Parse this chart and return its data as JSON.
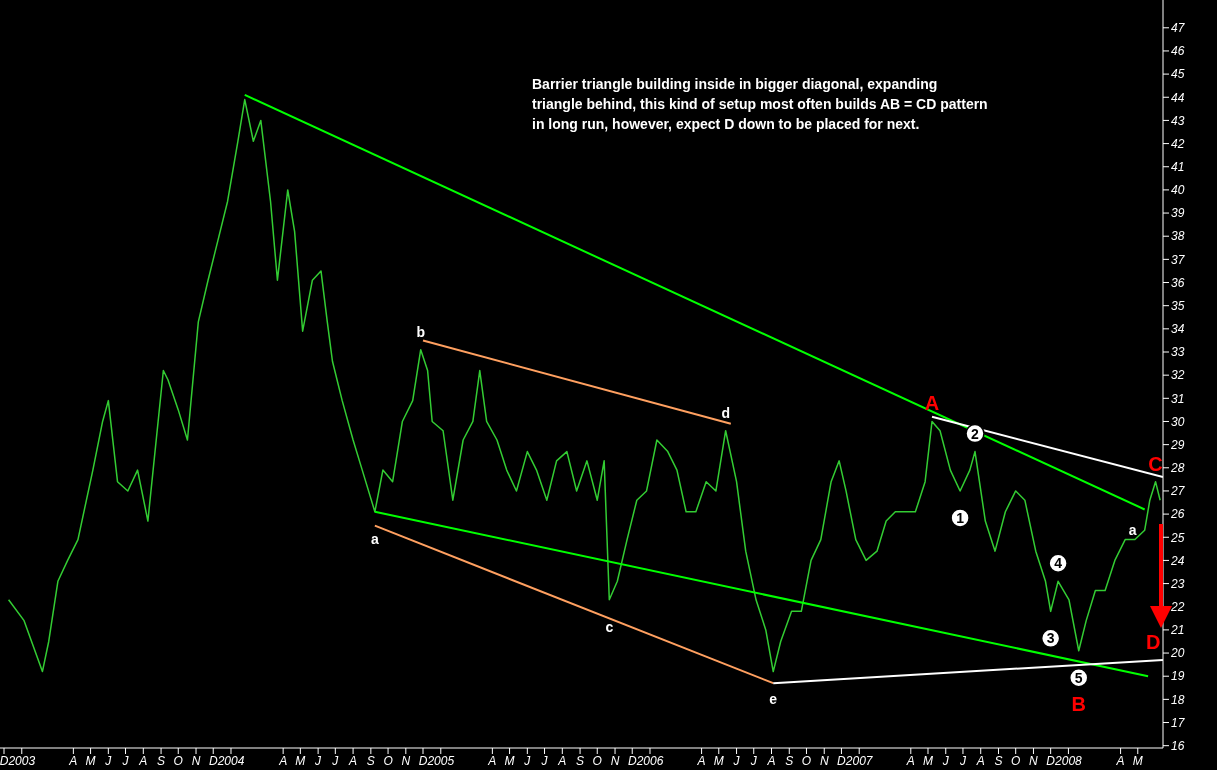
{
  "chart_data": {
    "type": "line",
    "annotations": [
      "Barrier triangle building inside in bigger diagonal, expanding\ntriangle behind, this kind of setup most often builds AB = CD pattern\nin long run, however, expect D down to be placed for next.",
      "D",
      {
        "text": "a",
        "x": "2004-09-08",
        "y": 26.1
      },
      {
        "text": "b",
        "x": "2004-11-27",
        "y": 33.1
      },
      {
        "text": "c",
        "x": "2005-10-22",
        "y": 22.3
      },
      {
        "text": "d",
        "x": "2006-05-13",
        "y": 29.6
      },
      {
        "text": "e",
        "x": "2006-08-04",
        "y": 19.2
      },
      {
        "text": "A",
        "x": "2007-05-08",
        "y": 30.0
      },
      {
        "text": "1",
        "x": "2007-06-26",
        "y": 27.0
      },
      {
        "text": "2",
        "x": "2007-07-22",
        "y": 28.7
      },
      {
        "text": "3",
        "x": "2007-12-01",
        "y": 21.8
      },
      {
        "text": "4",
        "x": "2007-12-14",
        "y": 23.1
      },
      {
        "text": "5",
        "x": "2008-01-19",
        "y": 20.1
      },
      {
        "text": "B",
        "x": "2008-01-19",
        "y": 20.1
      },
      {
        "text": "a",
        "x": "2008-05-13",
        "y": 25.3
      },
      {
        "text": "C",
        "x": "2008-06-01",
        "y": 27.4
      }
    ],
    "xlim": [
      "2002-11-24",
      "2008-06-14"
    ],
    "xticks": [
      {
        "value": "2002-12-01",
        "label": "D"
      },
      {
        "value": "2003-01-01",
        "label": "2003"
      },
      {
        "value": "2003-04-01",
        "label": "A"
      },
      {
        "value": "2003-05-01",
        "label": "M"
      },
      {
        "value": "2003-06-01",
        "label": "J"
      },
      {
        "value": "2003-07-01",
        "label": "J"
      },
      {
        "value": "2003-08-01",
        "label": "A"
      },
      {
        "value": "2003-09-01",
        "label": "S"
      },
      {
        "value": "2003-10-01",
        "label": "O"
      },
      {
        "value": "2003-11-01",
        "label": "N"
      },
      {
        "value": "2003-12-01",
        "label": "D"
      },
      {
        "value": "2004-01-01",
        "label": "2004"
      },
      {
        "value": "2004-04-01",
        "label": "A"
      },
      {
        "value": "2004-05-01",
        "label": "M"
      },
      {
        "value": "2004-06-01",
        "label": "J"
      },
      {
        "value": "2004-07-01",
        "label": "J"
      },
      {
        "value": "2004-08-01",
        "label": "A"
      },
      {
        "value": "2004-09-01",
        "label": "S"
      },
      {
        "value": "2004-10-01",
        "label": "O"
      },
      {
        "value": "2004-11-01",
        "label": "N"
      },
      {
        "value": "2004-12-01",
        "label": "D"
      },
      {
        "value": "2005-01-01",
        "label": "2005"
      },
      {
        "value": "2005-04-01",
        "label": "A"
      },
      {
        "value": "2005-05-01",
        "label": "M"
      },
      {
        "value": "2005-06-01",
        "label": "J"
      },
      {
        "value": "2005-07-01",
        "label": "J"
      },
      {
        "value": "2005-08-01",
        "label": "A"
      },
      {
        "value": "2005-09-01",
        "label": "S"
      },
      {
        "value": "2005-10-01",
        "label": "O"
      },
      {
        "value": "2005-11-01",
        "label": "N"
      },
      {
        "value": "2005-12-01",
        "label": "D"
      },
      {
        "value": "2006-01-01",
        "label": "2006"
      },
      {
        "value": "2006-04-01",
        "label": "A"
      },
      {
        "value": "2006-05-01",
        "label": "M"
      },
      {
        "value": "2006-06-01",
        "label": "J"
      },
      {
        "value": "2006-07-01",
        "label": "J"
      },
      {
        "value": "2006-08-01",
        "label": "A"
      },
      {
        "value": "2006-09-01",
        "label": "S"
      },
      {
        "value": "2006-10-01",
        "label": "O"
      },
      {
        "value": "2006-11-01",
        "label": "N"
      },
      {
        "value": "2006-12-01",
        "label": "D"
      },
      {
        "value": "2007-01-01",
        "label": "2007"
      },
      {
        "value": "2007-04-01",
        "label": "A"
      },
      {
        "value": "2007-05-01",
        "label": "M"
      },
      {
        "value": "2007-06-01",
        "label": "J"
      },
      {
        "value": "2007-07-01",
        "label": "J"
      },
      {
        "value": "2007-08-01",
        "label": "A"
      },
      {
        "value": "2007-09-01",
        "label": "S"
      },
      {
        "value": "2007-10-01",
        "label": "O"
      },
      {
        "value": "2007-11-01",
        "label": "N"
      },
      {
        "value": "2007-12-01",
        "label": "D"
      },
      {
        "value": "2008-01-01",
        "label": "2008"
      },
      {
        "value": "2008-04-01",
        "label": "A"
      },
      {
        "value": "2008-05-01",
        "label": "M"
      }
    ],
    "ylim": [
      15.9,
      48.2
    ],
    "yticks": [
      16,
      17,
      18,
      19,
      20,
      21,
      22,
      23,
      24,
      25,
      26,
      27,
      28,
      29,
      30,
      31,
      32,
      33,
      34,
      35,
      36,
      37,
      38,
      39,
      40,
      41,
      42,
      43,
      44,
      45,
      46,
      47
    ],
    "grid": false,
    "legend": false,
    "series": [
      {
        "color": "#33cc33",
        "x": [
          "2002-12-09",
          "2003-01-05",
          "2003-02-06",
          "2003-02-17",
          "2003-03-05",
          "2003-03-22",
          "2003-04-09",
          "2003-05-05",
          "2003-05-22",
          "2003-06-01",
          "2003-06-17",
          "2003-07-05",
          "2003-07-22",
          "2003-08-09",
          "2003-09-05",
          "2003-09-13",
          "2003-10-01",
          "2003-10-17",
          "2003-11-05",
          "2003-11-22",
          "2003-12-09",
          "2003-12-26",
          "2004-01-13",
          "2004-01-25",
          "2004-02-09",
          "2004-02-22",
          "2004-03-10",
          "2004-03-22",
          "2004-04-09",
          "2004-04-21",
          "2004-05-05",
          "2004-05-22",
          "2004-06-06",
          "2004-06-17",
          "2004-06-26",
          "2004-07-13",
          "2004-08-01",
          "2004-08-17",
          "2004-09-08",
          "2004-09-22",
          "2004-10-09",
          "2004-10-26",
          "2004-11-13",
          "2004-11-27",
          "2004-12-09",
          "2004-12-17",
          "2005-01-05",
          "2005-01-22",
          "2005-02-09",
          "2005-02-26",
          "2005-03-10",
          "2005-03-22",
          "2005-04-09",
          "2005-04-26",
          "2005-05-13",
          "2005-06-01",
          "2005-06-17",
          "2005-07-05",
          "2005-07-22",
          "2005-08-09",
          "2005-08-26",
          "2005-09-13",
          "2005-10-01",
          "2005-10-13",
          "2005-10-22",
          "2005-11-05",
          "2005-11-22",
          "2005-12-09",
          "2005-12-26",
          "2006-01-13",
          "2006-02-01",
          "2006-02-17",
          "2006-03-05",
          "2006-03-22",
          "2006-04-09",
          "2006-04-26",
          "2006-05-13",
          "2006-06-01",
          "2006-06-17",
          "2006-07-05",
          "2006-07-22",
          "2006-08-04",
          "2006-08-17",
          "2006-09-05",
          "2006-09-22",
          "2006-10-09",
          "2006-10-26",
          "2006-11-13",
          "2006-11-27",
          "2006-12-09",
          "2006-12-26",
          "2007-01-13",
          "2007-02-01",
          "2007-02-17",
          "2007-03-05",
          "2007-03-22",
          "2007-04-09",
          "2007-04-26",
          "2007-05-08",
          "2007-05-22",
          "2007-06-09",
          "2007-06-26",
          "2007-07-13",
          "2007-07-22",
          "2007-08-09",
          "2007-08-26",
          "2007-09-13",
          "2007-10-01",
          "2007-10-17",
          "2007-11-05",
          "2007-11-22",
          "2007-12-01",
          "2007-12-14",
          "2008-01-02",
          "2008-01-19",
          "2008-02-01",
          "2008-02-17",
          "2008-03-05",
          "2008-03-22",
          "2008-04-09",
          "2008-04-26",
          "2008-05-13",
          "2008-05-22",
          "2008-06-01",
          "2008-06-09"
        ],
        "values": [
          22.3,
          21.4,
          19.2,
          20.5,
          23.1,
          24.0,
          24.9,
          27.9,
          30.0,
          30.9,
          27.4,
          27.0,
          27.9,
          25.7,
          32.2,
          31.8,
          30.5,
          29.2,
          34.3,
          36.1,
          37.8,
          39.5,
          42.1,
          43.9,
          42.1,
          43.0,
          39.5,
          36.1,
          40.0,
          38.2,
          33.9,
          36.1,
          36.5,
          34.3,
          32.6,
          30.9,
          29.2,
          27.9,
          26.1,
          27.9,
          27.4,
          30.0,
          30.9,
          33.1,
          32.2,
          30.0,
          29.6,
          26.6,
          29.2,
          30.0,
          32.2,
          30.0,
          29.2,
          27.9,
          27.0,
          28.7,
          27.9,
          26.6,
          28.3,
          28.7,
          27.0,
          28.3,
          26.6,
          28.3,
          22.3,
          23.1,
          24.9,
          26.6,
          27.0,
          29.2,
          28.7,
          27.9,
          26.1,
          26.1,
          27.4,
          27.0,
          29.6,
          27.4,
          24.4,
          22.3,
          21.0,
          19.2,
          20.5,
          21.8,
          21.8,
          24.0,
          24.9,
          27.4,
          28.3,
          27.0,
          24.9,
          24.0,
          24.4,
          25.7,
          26.1,
          26.1,
          26.1,
          27.4,
          30.0,
          29.6,
          27.9,
          27.0,
          27.9,
          28.7,
          25.7,
          24.4,
          26.1,
          27.0,
          26.6,
          24.4,
          23.1,
          21.8,
          23.1,
          22.3,
          20.1,
          21.4,
          22.7,
          22.7,
          24.0,
          24.9,
          24.9,
          25.3,
          26.6,
          27.4,
          26.6
        ]
      },
      {
        "color": "#00ff00",
        "x": [
          "2004-01-25",
          "2008-05-13"
        ],
        "values": [
          44.1,
          26.2
        ]
      },
      {
        "color": "#00ff00",
        "x": [
          "2004-09-08",
          "2008-05-19"
        ],
        "values": [
          26.1,
          19.0
        ]
      },
      {
        "color": "#ffa060",
        "x": [
          "2004-12-01",
          "2006-05-22"
        ],
        "values": [
          33.5,
          29.9
        ]
      },
      {
        "color": "#ffa060",
        "x": [
          "2004-09-08",
          "2006-08-04"
        ],
        "values": [
          25.5,
          18.7
        ]
      },
      {
        "color": "#ffffff",
        "x": [
          "2007-05-08",
          "2008-06-14"
        ],
        "values": [
          30.2,
          27.6
        ]
      },
      {
        "color": "#ffffff",
        "x": [
          "2006-08-04",
          "2008-06-14"
        ],
        "values": [
          18.7,
          19.7
        ]
      }
    ]
  }
}
